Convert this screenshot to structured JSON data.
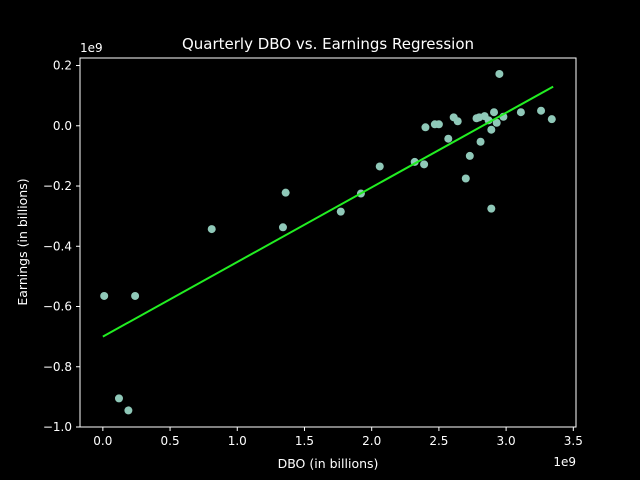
{
  "chart_data": {
    "type": "scatter",
    "title": "Quarterly DBO vs. Earnings Regression",
    "xlabel": "DBO (in billions)",
    "ylabel": "Earnings (in billions)",
    "x_offset_label": "1e9",
    "y_offset_label": "1e9",
    "xlim": [
      -0.17,
      3.52
    ],
    "ylim": [
      -1.0,
      0.225
    ],
    "x_ticks": [
      0.0,
      0.5,
      1.0,
      1.5,
      2.0,
      2.5,
      3.0,
      3.5
    ],
    "x_tick_labels": [
      "0.0",
      "0.5",
      "1.0",
      "1.5",
      "2.0",
      "2.5",
      "3.0",
      "3.5"
    ],
    "y_ticks": [
      -1.0,
      -0.8,
      -0.6,
      -0.4,
      -0.2,
      0.0,
      0.2
    ],
    "y_tick_labels": [
      "−1.0",
      "−0.8",
      "−0.6",
      "−0.4",
      "−0.2",
      "0.0",
      "0.2"
    ],
    "grid": false,
    "colors": {
      "background": "#000000",
      "points": "#8fc8b8",
      "regression_line": "#22ee22",
      "axes": "#ffffff"
    },
    "series": [
      {
        "type": "scatter",
        "x": [
          0.01,
          0.12,
          0.19,
          0.24,
          0.81,
          1.34,
          1.36,
          1.77,
          1.92,
          2.06,
          2.32,
          2.39,
          2.4,
          2.47,
          2.5,
          2.57,
          2.61,
          2.64,
          2.7,
          2.73,
          2.78,
          2.8,
          2.81,
          2.84,
          2.87,
          2.89,
          2.89,
          2.91,
          2.93,
          2.95,
          2.98,
          3.11,
          3.26,
          3.34
        ],
        "y": [
          -0.565,
          -0.905,
          -0.945,
          -0.565,
          -0.343,
          -0.337,
          -0.222,
          -0.285,
          -0.225,
          -0.135,
          -0.12,
          -0.128,
          -0.005,
          0.005,
          0.005,
          -0.043,
          0.028,
          0.015,
          -0.175,
          -0.1,
          0.025,
          0.028,
          -0.053,
          0.032,
          0.018,
          -0.013,
          -0.275,
          0.045,
          0.01,
          0.172,
          0.03,
          0.045,
          0.05,
          0.022
        ]
      },
      {
        "type": "line",
        "x": [
          0.0,
          3.35
        ],
        "y": [
          -0.7,
          0.13
        ]
      }
    ]
  }
}
